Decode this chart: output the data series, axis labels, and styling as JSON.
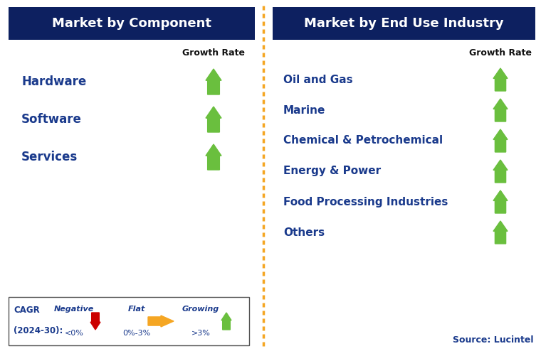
{
  "left_title": "Market by Component",
  "right_title": "Market by End Use Industry",
  "header_bg": "#0d2060",
  "header_text_color": "#ffffff",
  "item_text_color": "#1a3a8c",
  "growth_rate_label_color": "#111111",
  "left_items": [
    "Hardware",
    "Software",
    "Services"
  ],
  "right_items": [
    "Oil and Gas",
    "Marine",
    "Chemical & Petrochemical",
    "Energy & Power",
    "Food Processing Industries",
    "Others"
  ],
  "green_arrow_color": "#6abf3e",
  "red_arrow_color": "#cc0000",
  "yellow_arrow_color": "#f5a623",
  "divider_color": "#f5a623",
  "source_text": "Source: Lucintel",
  "source_color": "#1a3a8c",
  "bg_color": "#ffffff",
  "legend_border_color": "#555555",
  "legend_negative_label": "Negative",
  "legend_negative_sub": "<0%",
  "legend_flat_label": "Flat",
  "legend_flat_sub": "0%-3%",
  "legend_growing_label": "Growing",
  "legend_growing_sub": ">3%"
}
